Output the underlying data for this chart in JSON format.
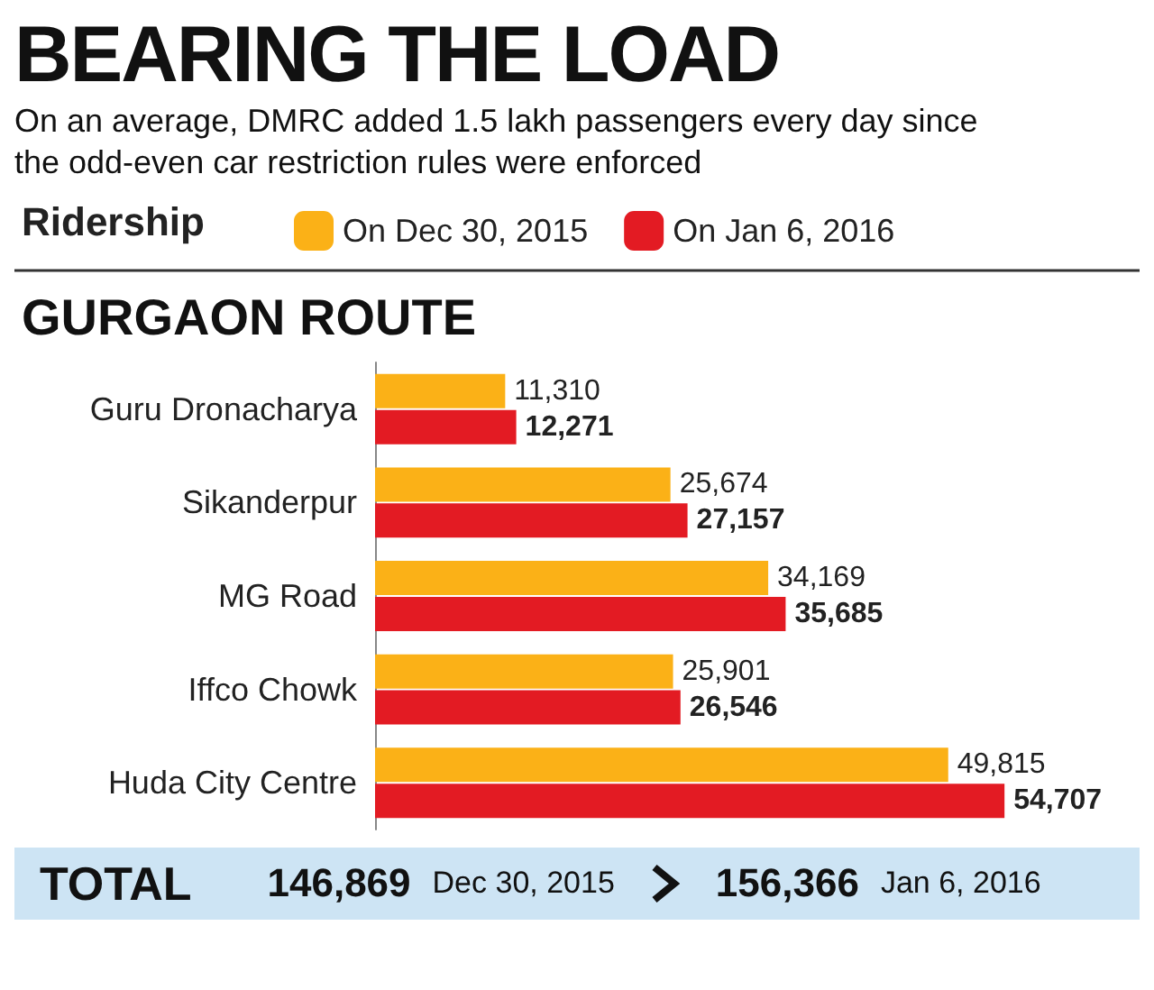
{
  "chart_data": {
    "type": "bar",
    "orientation": "horizontal",
    "title": "BEARING THE LOAD",
    "subtitle": "On an average, DMRC added 1.5 lakh passengers every day since the odd-even car restriction rules were enforced",
    "legend_title": "Ridership",
    "legend": "top left",
    "categories": [
      "Guru Dronacharya",
      "Sikanderpur",
      "MG Road",
      "Iffco Chowk",
      "Huda City Centre"
    ],
    "series": [
      {
        "name": "On Dec 30, 2015",
        "color": "#fbb117",
        "values": [
          11310,
          25674,
          34169,
          25901,
          49815
        ],
        "value_labels": [
          "11,310",
          "25,674",
          "34,169",
          "25,901",
          "49,815"
        ]
      },
      {
        "name": "On Jan 6, 2016",
        "color": "#e31b23",
        "values": [
          12271,
          27157,
          35685,
          26546,
          54707
        ],
        "value_labels": [
          "12,271",
          "27,157",
          "35,685",
          "26,546",
          "54,707"
        ]
      }
    ],
    "annotations": [
      "GURGAON ROUTE",
      "TOTAL",
      "146,869",
      "Dec 30, 2015",
      "156,366",
      "Jan 6, 2016"
    ]
  }
}
